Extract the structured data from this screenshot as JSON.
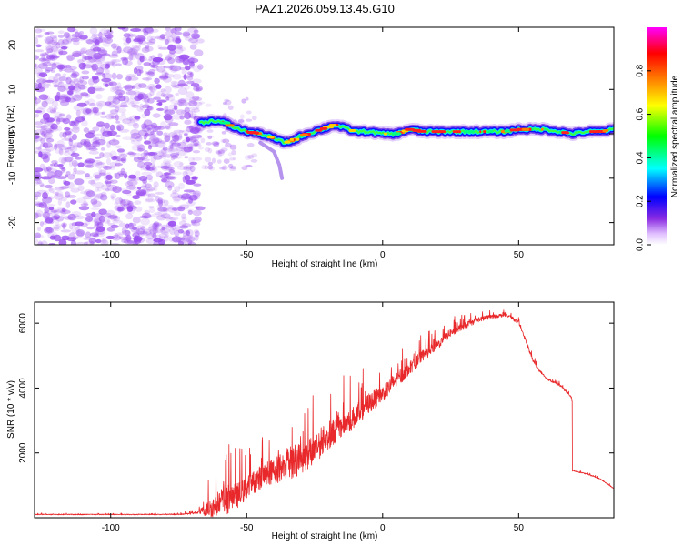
{
  "title": "PAZ1.2026.059.13.45.G10",
  "colors": {
    "snr_line": "#e8282a",
    "spectral_scatter": "#9a4df0",
    "frame": "#000000"
  },
  "chart_data": [
    {
      "type": "heatmap",
      "name": "spectrogram",
      "xlabel": "Height of straight line (km)",
      "ylabel": "Frequency (Hz)",
      "xlim": [
        -128,
        85
      ],
      "ylim": [
        -25,
        24
      ],
      "xticks": [
        -100,
        -50,
        0,
        50
      ],
      "yticks": [
        -20,
        -10,
        0,
        10,
        20
      ],
      "colorbar": {
        "label": "Normalized spectral amplitude",
        "range": [
          0,
          1
        ],
        "ticks": [
          0.0,
          0.2,
          0.4,
          0.6,
          0.8
        ],
        "tick_labels": [
          "0.0",
          "0.2",
          "0.4",
          "0.6",
          "0.8"
        ],
        "colormap": [
          "#ffffff",
          "#8a2be2",
          "#0000ff",
          "#00ffff",
          "#00ff00",
          "#ffff00",
          "#ff8000",
          "#ff0000",
          "#ff00ff"
        ]
      },
      "noise_region": {
        "x_from": -128,
        "x_to": -67,
        "freq_from": -25,
        "freq_to": 24
      },
      "ridge": {
        "x": [
          -67,
          -62,
          -58,
          -55,
          -50,
          -45,
          -40,
          -36,
          -33,
          -30,
          -25,
          -20,
          -18,
          -15,
          -10,
          -5,
          0,
          5,
          10,
          15,
          20,
          25,
          30,
          35,
          40,
          45,
          50,
          55,
          60,
          65,
          70,
          75,
          80,
          85
        ],
        "freq": [
          2.5,
          3.0,
          2.5,
          1.5,
          0.5,
          0.0,
          -1.0,
          -2.0,
          -1.5,
          -0.5,
          0.5,
          1.5,
          2.0,
          1.5,
          0.5,
          0.5,
          0.0,
          0.0,
          1.0,
          0.5,
          0.5,
          0.5,
          0.5,
          0.5,
          0.5,
          0.5,
          1.0,
          1.0,
          1.0,
          0.5,
          0.0,
          0.5,
          0.5,
          1.0
        ]
      },
      "spur": {
        "x": [
          -45,
          -40,
          -38,
          -37
        ],
        "freq": [
          -2,
          -4,
          -7,
          -10
        ]
      }
    },
    {
      "type": "line",
      "name": "snr",
      "xlabel": "Height of straight line (km)",
      "ylabel": "SNR (10 * v/v)",
      "xlim": [
        -128,
        85
      ],
      "ylim": [
        0,
        6650
      ],
      "xticks": [
        -100,
        -50,
        0,
        50
      ],
      "yticks": [
        2000,
        4000,
        6000
      ],
      "envelope": {
        "x": [
          -128,
          -100,
          -75,
          -68,
          -64,
          -60,
          -58,
          -55,
          -52,
          -50,
          -45,
          -40,
          -35,
          -30,
          -25,
          -20,
          -15,
          -10,
          -5,
          0,
          5,
          10,
          15,
          20,
          25,
          30,
          35,
          40,
          45,
          47,
          50,
          52,
          55,
          57,
          60,
          65,
          68,
          69.5,
          69.6,
          70,
          75,
          80,
          85
        ],
        "base": [
          100,
          100,
          100,
          150,
          250,
          400,
          500,
          600,
          700,
          900,
          1200,
          1400,
          1600,
          1800,
          2100,
          2500,
          2800,
          3100,
          3500,
          3800,
          4200,
          4600,
          5000,
          5300,
          5700,
          5900,
          6100,
          6200,
          6250,
          6200,
          6000,
          5600,
          4900,
          4600,
          4300,
          4100,
          3850,
          3700,
          1400,
          1450,
          1350,
          1200,
          900
        ],
        "spike_amp": [
          50,
          50,
          50,
          150,
          1000,
          1800,
          2000,
          1600,
          1500,
          1400,
          1500,
          1600,
          2200,
          2000,
          2000,
          1700,
          1600,
          1400,
          1300,
          1000,
          900,
          800,
          700,
          600,
          500,
          400,
          300,
          250,
          200,
          200,
          200,
          200,
          200,
          150,
          150,
          150,
          150,
          100,
          60,
          60,
          60,
          60,
          60
        ]
      }
    }
  ]
}
